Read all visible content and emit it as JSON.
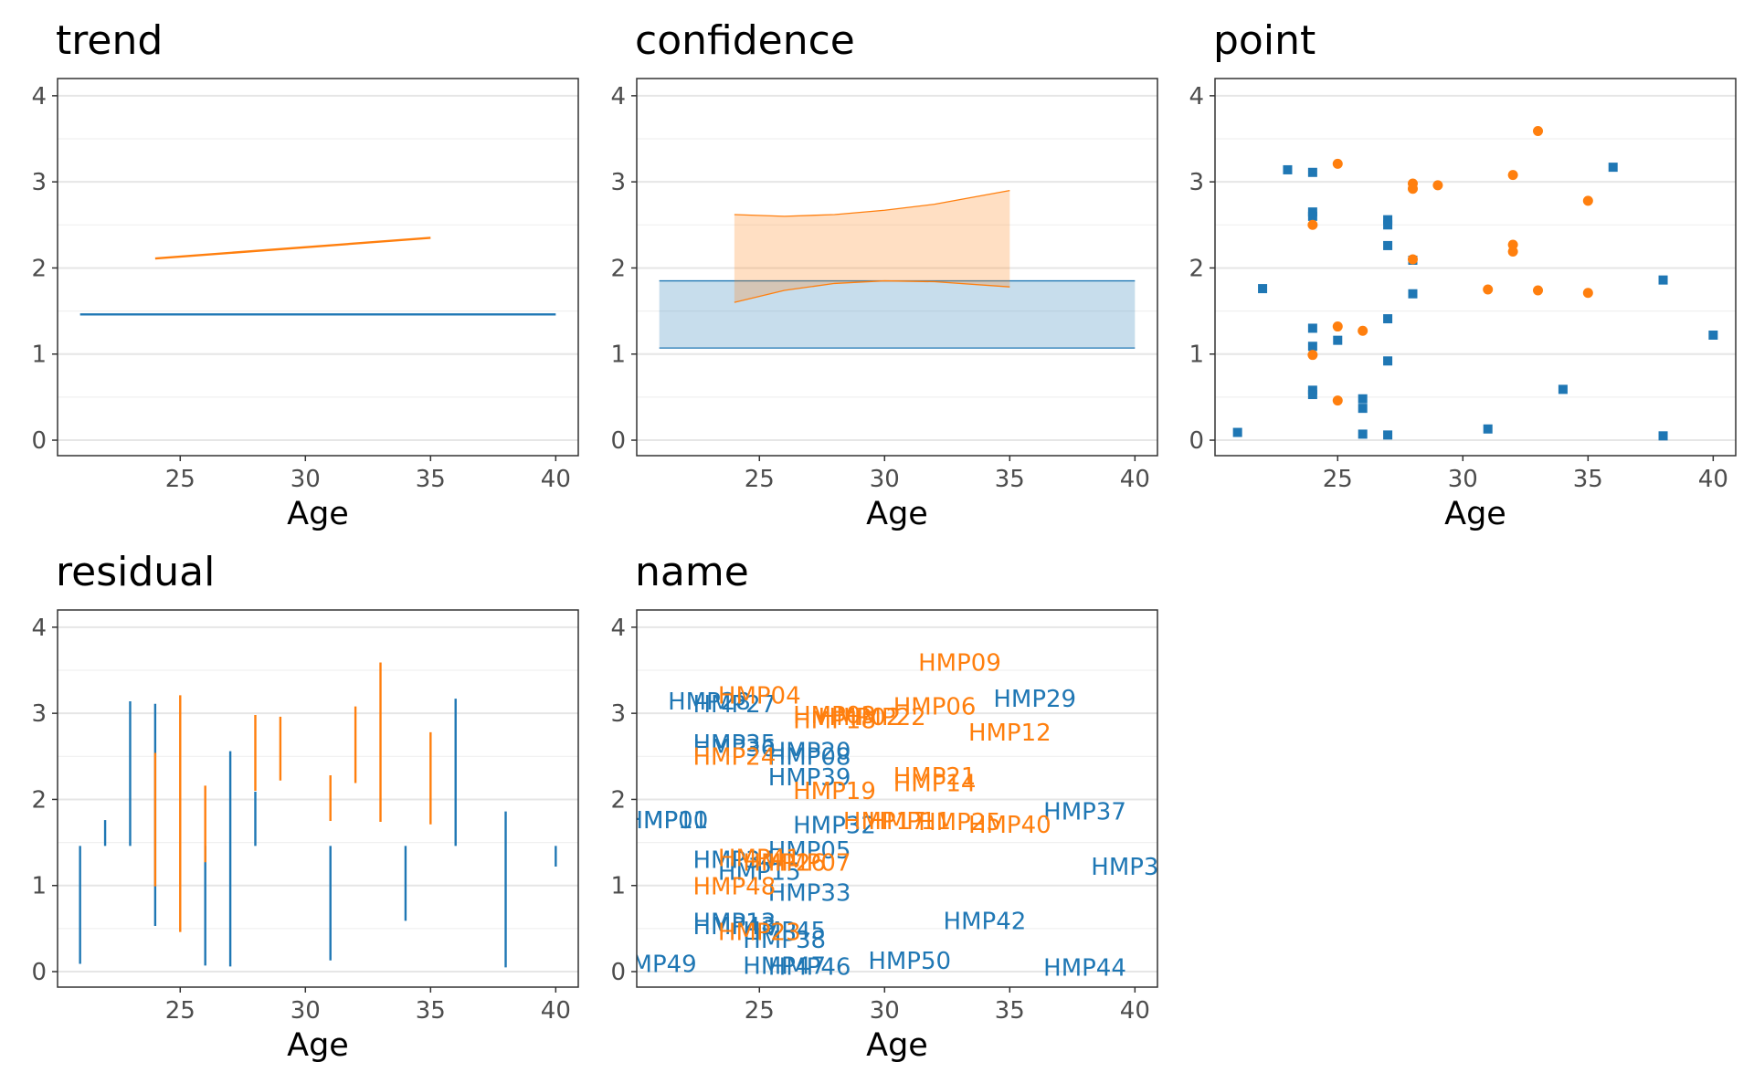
{
  "colors": {
    "group_a": "#1f77b4",
    "group_b": "#ff7f0e"
  },
  "x_axis": {
    "label": "Age",
    "ticks": [
      25,
      30,
      35,
      40
    ],
    "range": [
      20.1,
      40.9
    ]
  },
  "y_axis": {
    "ticks": [
      0,
      1,
      2,
      3,
      4
    ],
    "range": [
      -0.18,
      4.2
    ]
  },
  "chart_data": [
    {
      "type": "line",
      "title": "trend",
      "xlabel": "Age",
      "ylim": [
        -0.18,
        4.2
      ],
      "xlim": [
        20.1,
        40.9
      ],
      "grid": true,
      "series": [
        {
          "color": "#1f77b4",
          "x": [
            21,
            40
          ],
          "y": [
            1.46,
            1.46
          ]
        },
        {
          "color": "#ff7f0e",
          "x": [
            24,
            35
          ],
          "y": [
            2.11,
            2.35
          ]
        }
      ]
    },
    {
      "type": "area",
      "title": "confidence",
      "xlabel": "Age",
      "ylim": [
        -0.18,
        4.2
      ],
      "xlim": [
        20.1,
        40.9
      ],
      "grid": true,
      "series": [
        {
          "color": "#1f77b4",
          "x": [
            21,
            40
          ],
          "lower": [
            1.07,
            1.07
          ],
          "upper": [
            1.85,
            1.85
          ]
        },
        {
          "color": "#ff7f0e",
          "x": [
            24,
            26,
            28,
            30,
            32,
            35
          ],
          "lower": [
            1.6,
            1.74,
            1.82,
            1.85,
            1.84,
            1.78
          ],
          "upper": [
            2.62,
            2.6,
            2.62,
            2.67,
            2.74,
            2.9
          ]
        }
      ]
    },
    {
      "type": "scatter",
      "title": "point",
      "xlabel": "Age",
      "ylim": [
        -0.18,
        4.2
      ],
      "xlim": [
        20.1,
        40.9
      ],
      "grid": true,
      "series": [
        {
          "color": "#1f77b4",
          "marker": "square",
          "points": [
            [
              21,
              0.09
            ],
            [
              22,
              1.76
            ],
            [
              23,
              3.14
            ],
            [
              24,
              3.11
            ],
            [
              24,
              2.65
            ],
            [
              24,
              2.6
            ],
            [
              24,
              1.3
            ],
            [
              24,
              1.09
            ],
            [
              24,
              0.58
            ],
            [
              24,
              0.53
            ],
            [
              25,
              1.16
            ],
            [
              26,
              0.48
            ],
            [
              26,
              0.37
            ],
            [
              26,
              0.07
            ],
            [
              27,
              2.56
            ],
            [
              27,
              2.5
            ],
            [
              27,
              2.26
            ],
            [
              27,
              1.41
            ],
            [
              27,
              0.92
            ],
            [
              27,
              0.06
            ],
            [
              28,
              2.09
            ],
            [
              28,
              1.7
            ],
            [
              31,
              0.13
            ],
            [
              34,
              0.59
            ],
            [
              36,
              3.17
            ],
            [
              38,
              1.86
            ],
            [
              38,
              0.05
            ],
            [
              40,
              1.22
            ]
          ]
        },
        {
          "color": "#ff7f0e",
          "marker": "circle",
          "points": [
            [
              24,
              2.5
            ],
            [
              24,
              0.99
            ],
            [
              25,
              3.21
            ],
            [
              25,
              1.32
            ],
            [
              25,
              0.46
            ],
            [
              26,
              1.27
            ],
            [
              28,
              2.98
            ],
            [
              28,
              2.92
            ],
            [
              28,
              2.1
            ],
            [
              29,
              2.96
            ],
            [
              31,
              1.75
            ],
            [
              32,
              3.08
            ],
            [
              32,
              2.27
            ],
            [
              32,
              2.19
            ],
            [
              33,
              3.59
            ],
            [
              33,
              1.74
            ],
            [
              35,
              2.78
            ],
            [
              35,
              1.71
            ]
          ]
        }
      ]
    },
    {
      "type": "errorbar",
      "title": "residual",
      "xlabel": "Age",
      "ylim": [
        -0.18,
        4.2
      ],
      "xlim": [
        20.1,
        40.9
      ],
      "grid": true,
      "series": [
        {
          "color": "#1f77b4",
          "segments": [
            [
              21,
              0.09,
              1.46
            ],
            [
              22,
              1.46,
              1.76
            ],
            [
              23,
              1.46,
              3.14
            ],
            [
              24,
              0.53,
              3.11
            ],
            [
              26,
              0.07,
              1.46
            ],
            [
              27,
              0.06,
              2.56
            ],
            [
              28,
              1.46,
              2.09
            ],
            [
              31,
              0.13,
              1.46
            ],
            [
              34,
              0.59,
              1.46
            ],
            [
              36,
              1.46,
              3.17
            ],
            [
              38,
              0.05,
              1.86
            ],
            [
              40,
              1.22,
              1.46
            ]
          ]
        },
        {
          "color": "#ff7f0e",
          "segments": [
            [
              24,
              0.99,
              2.54
            ],
            [
              25,
              0.46,
              3.21
            ],
            [
              26,
              1.27,
              2.16
            ],
            [
              28,
              2.1,
              2.98
            ],
            [
              29,
              2.22,
              2.96
            ],
            [
              31,
              1.75,
              2.28
            ],
            [
              32,
              2.19,
              3.08
            ],
            [
              33,
              1.74,
              3.59
            ],
            [
              35,
              1.71,
              2.78
            ]
          ]
        }
      ]
    },
    {
      "type": "scatter",
      "title": "name",
      "xlabel": "Age",
      "ylim": [
        -0.18,
        4.2
      ],
      "xlim": [
        20.1,
        40.9
      ],
      "grid": true,
      "labels": [
        {
          "text": "HMP28",
          "x": 23,
          "y": 3.14,
          "color": "#1f77b4"
        },
        {
          "text": "HMP27",
          "x": 24,
          "y": 3.11,
          "color": "#1f77b4"
        },
        {
          "text": "HMP35",
          "x": 24,
          "y": 2.65,
          "color": "#1f77b4"
        },
        {
          "text": "HMP36",
          "x": 24,
          "y": 2.6,
          "color": "#1f77b4"
        },
        {
          "text": "HMP20",
          "x": 27,
          "y": 2.56,
          "color": "#1f77b4"
        },
        {
          "text": "HMP08",
          "x": 27,
          "y": 2.5,
          "color": "#1f77b4"
        },
        {
          "text": "HMP39",
          "x": 27,
          "y": 2.26,
          "color": "#1f77b4"
        },
        {
          "text": "HMP29",
          "x": 36,
          "y": 3.17,
          "color": "#1f77b4"
        },
        {
          "text": "HMP37",
          "x": 38,
          "y": 1.86,
          "color": "#1f77b4"
        },
        {
          "text": "HMP32",
          "x": 28,
          "y": 1.7,
          "color": "#1f77b4"
        },
        {
          "text": "HMP10",
          "x": 21.3,
          "y": 1.76,
          "color": "#1f77b4"
        },
        {
          "text": "HMP01",
          "x": 21.3,
          "y": 1.76,
          "color": "#1f77b4"
        },
        {
          "text": "HMP05",
          "x": 27,
          "y": 1.41,
          "color": "#1f77b4"
        },
        {
          "text": "HMP34",
          "x": 24,
          "y": 1.3,
          "color": "#1f77b4"
        },
        {
          "text": "HMP15",
          "x": 25,
          "y": 1.16,
          "color": "#1f77b4"
        },
        {
          "text": "HMP33",
          "x": 27,
          "y": 0.92,
          "color": "#1f77b4"
        },
        {
          "text": "HMP3",
          "x": 39.6,
          "y": 1.22,
          "color": "#1f77b4"
        },
        {
          "text": "HMP13",
          "x": 24,
          "y": 0.58,
          "color": "#1f77b4"
        },
        {
          "text": "HMP43",
          "x": 24,
          "y": 0.53,
          "color": "#1f77b4"
        },
        {
          "text": "HMP45",
          "x": 26,
          "y": 0.48,
          "color": "#1f77b4"
        },
        {
          "text": "HMP38",
          "x": 26,
          "y": 0.37,
          "color": "#1f77b4"
        },
        {
          "text": "HMP42",
          "x": 34,
          "y": 0.59,
          "color": "#1f77b4"
        },
        {
          "text": "MP49",
          "x": 21.2,
          "y": 0.09,
          "color": "#1f77b4"
        },
        {
          "text": "HMP47",
          "x": 26,
          "y": 0.07,
          "color": "#1f77b4"
        },
        {
          "text": "HMP46",
          "x": 27,
          "y": 0.06,
          "color": "#1f77b4"
        },
        {
          "text": "HMP50",
          "x": 31,
          "y": 0.13,
          "color": "#1f77b4"
        },
        {
          "text": "HMP44",
          "x": 38,
          "y": 0.05,
          "color": "#1f77b4"
        },
        {
          "text": "HMP09",
          "x": 33,
          "y": 3.59,
          "color": "#ff7f0e"
        },
        {
          "text": "HMP04",
          "x": 25,
          "y": 3.21,
          "color": "#ff7f0e"
        },
        {
          "text": "HMP06",
          "x": 32,
          "y": 3.08,
          "color": "#ff7f0e"
        },
        {
          "text": "HMP02",
          "x": 29,
          "y": 2.96,
          "color": "#ff7f0e"
        },
        {
          "text": "HMP22",
          "x": 30,
          "y": 2.96,
          "color": "#ff7f0e"
        },
        {
          "text": "HMP03",
          "x": 28,
          "y": 2.98,
          "color": "#ff7f0e"
        },
        {
          "text": "HMP18",
          "x": 28,
          "y": 2.92,
          "color": "#ff7f0e"
        },
        {
          "text": "HMP12",
          "x": 35,
          "y": 2.78,
          "color": "#ff7f0e"
        },
        {
          "text": "HMP24",
          "x": 24,
          "y": 2.5,
          "color": "#ff7f0e"
        },
        {
          "text": "HMP21",
          "x": 32,
          "y": 2.27,
          "color": "#ff7f0e"
        },
        {
          "text": "HMP14",
          "x": 32,
          "y": 2.19,
          "color": "#ff7f0e"
        },
        {
          "text": "HMP19",
          "x": 28,
          "y": 2.1,
          "color": "#ff7f0e"
        },
        {
          "text": "HMP17",
          "x": 30,
          "y": 1.75,
          "color": "#ff7f0e"
        },
        {
          "text": "HMP11",
          "x": 31,
          "y": 1.75,
          "color": "#ff7f0e"
        },
        {
          "text": "HMP25",
          "x": 33,
          "y": 1.74,
          "color": "#ff7f0e"
        },
        {
          "text": "HMP40",
          "x": 35,
          "y": 1.71,
          "color": "#ff7f0e"
        },
        {
          "text": "HMP26",
          "x": 26,
          "y": 1.27,
          "color": "#ff7f0e"
        },
        {
          "text": "HMP07",
          "x": 27,
          "y": 1.27,
          "color": "#ff7f0e"
        },
        {
          "text": "HMP41",
          "x": 25,
          "y": 1.32,
          "color": "#ff7f0e"
        },
        {
          "text": "HMP48",
          "x": 24,
          "y": 0.99,
          "color": "#ff7f0e"
        },
        {
          "text": "HMP23",
          "x": 25,
          "y": 0.46,
          "color": "#ff7f0e"
        }
      ]
    }
  ]
}
